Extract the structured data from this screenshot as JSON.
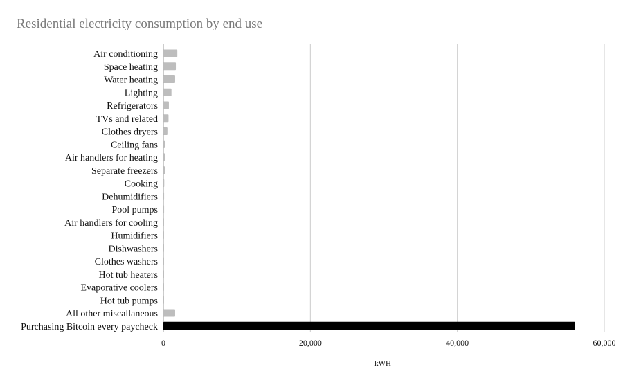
{
  "chart_data": {
    "type": "bar",
    "orientation": "horizontal",
    "title": "Residential electricity consumption by end use",
    "xlabel": "kWH",
    "ylabel": "",
    "xlim": [
      0,
      60000
    ],
    "x_ticks": [
      "0",
      "20,000",
      "40,000",
      "60,000"
    ],
    "grid": true,
    "legend": "none",
    "categories": [
      "Air conditioning",
      "Space heating",
      "Water heating",
      "Lighting",
      "Refrigerators",
      "TVs and related",
      "Clothes dryers",
      "Ceiling fans",
      "Air handlers for heating",
      "Separate freezers",
      "Cooking",
      "Dehumidifiers",
      "Pool pumps",
      "Air handlers for cooling",
      "Humidifiers",
      "Dishwashers",
      "Clothes washers",
      "Hot tub heaters",
      "Evaporative coolers",
      "Hot tub pumps",
      "All other miscallaneous",
      "Purchasing Bitcoin every paycheck"
    ],
    "values": [
      1900,
      1700,
      1600,
      1100,
      750,
      700,
      550,
      250,
      250,
      220,
      120,
      100,
      100,
      90,
      40,
      40,
      30,
      20,
      10,
      10,
      1600,
      56000
    ],
    "colors": {
      "default_bar": "#bdbdbd",
      "highlight_bar": "#000000",
      "highlight_index": 21,
      "grid": "#cccccc"
    }
  }
}
